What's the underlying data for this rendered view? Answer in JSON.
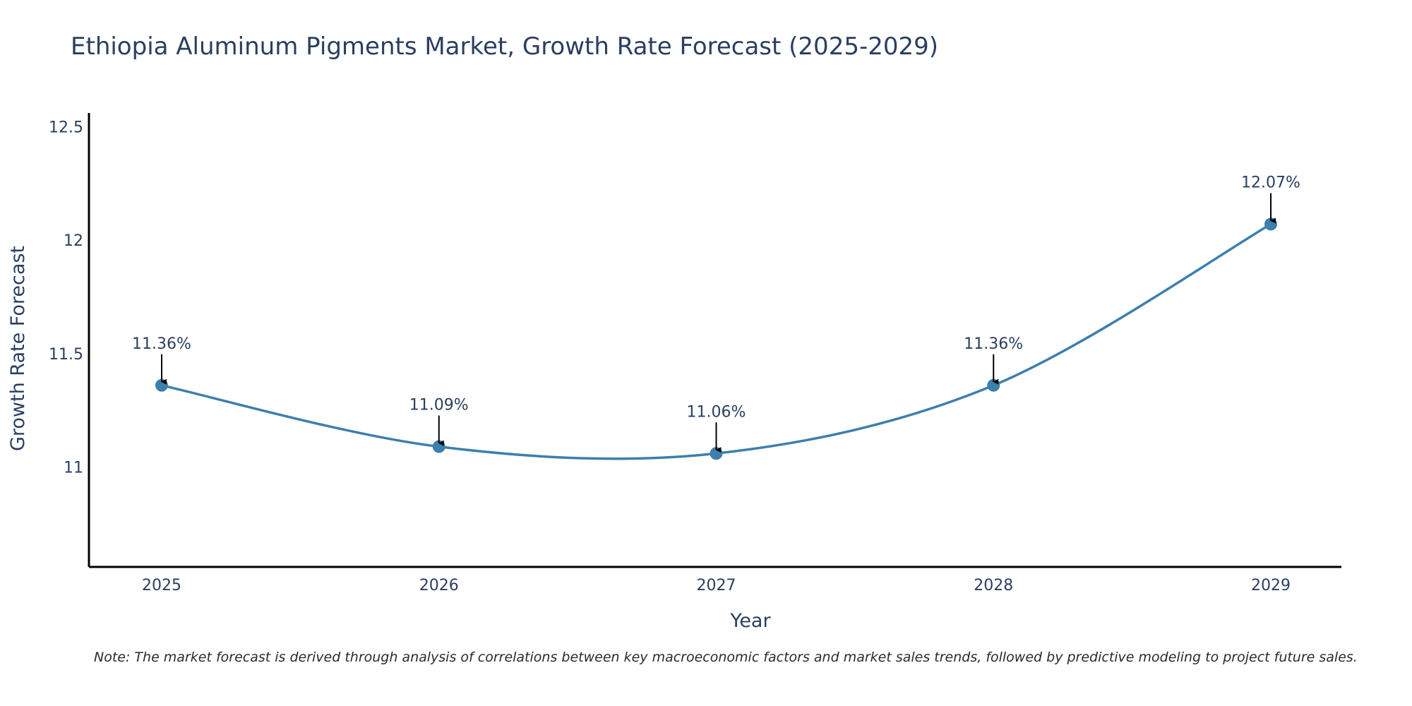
{
  "chart_data": {
    "type": "line",
    "title": "Ethiopia Aluminum Pigments Market, Growth Rate Forecast (2025-2029)",
    "xlabel": "Year",
    "ylabel": "Growth Rate Forecast",
    "categories": [
      "2025",
      "2026",
      "2027",
      "2028",
      "2029"
    ],
    "series": [
      {
        "name": "Growth Rate Forecast",
        "values": [
          11.36,
          11.09,
          11.06,
          11.36,
          12.07
        ]
      }
    ],
    "data_labels": [
      "11.36%",
      "11.09%",
      "11.06%",
      "11.36%",
      "12.07%"
    ],
    "y_ticks": [
      11,
      11.5,
      12,
      12.5
    ],
    "y_tick_labels": [
      "11",
      "11.5",
      "12",
      "12.5"
    ],
    "ylim": [
      10.56,
      12.56
    ],
    "grid": false,
    "line_color": "#3d7fad",
    "note": "Note: The market forecast is derived through analysis of correlations between key macroeconomic factors and market sales trends, followed by predictive modeling to project future sales."
  }
}
